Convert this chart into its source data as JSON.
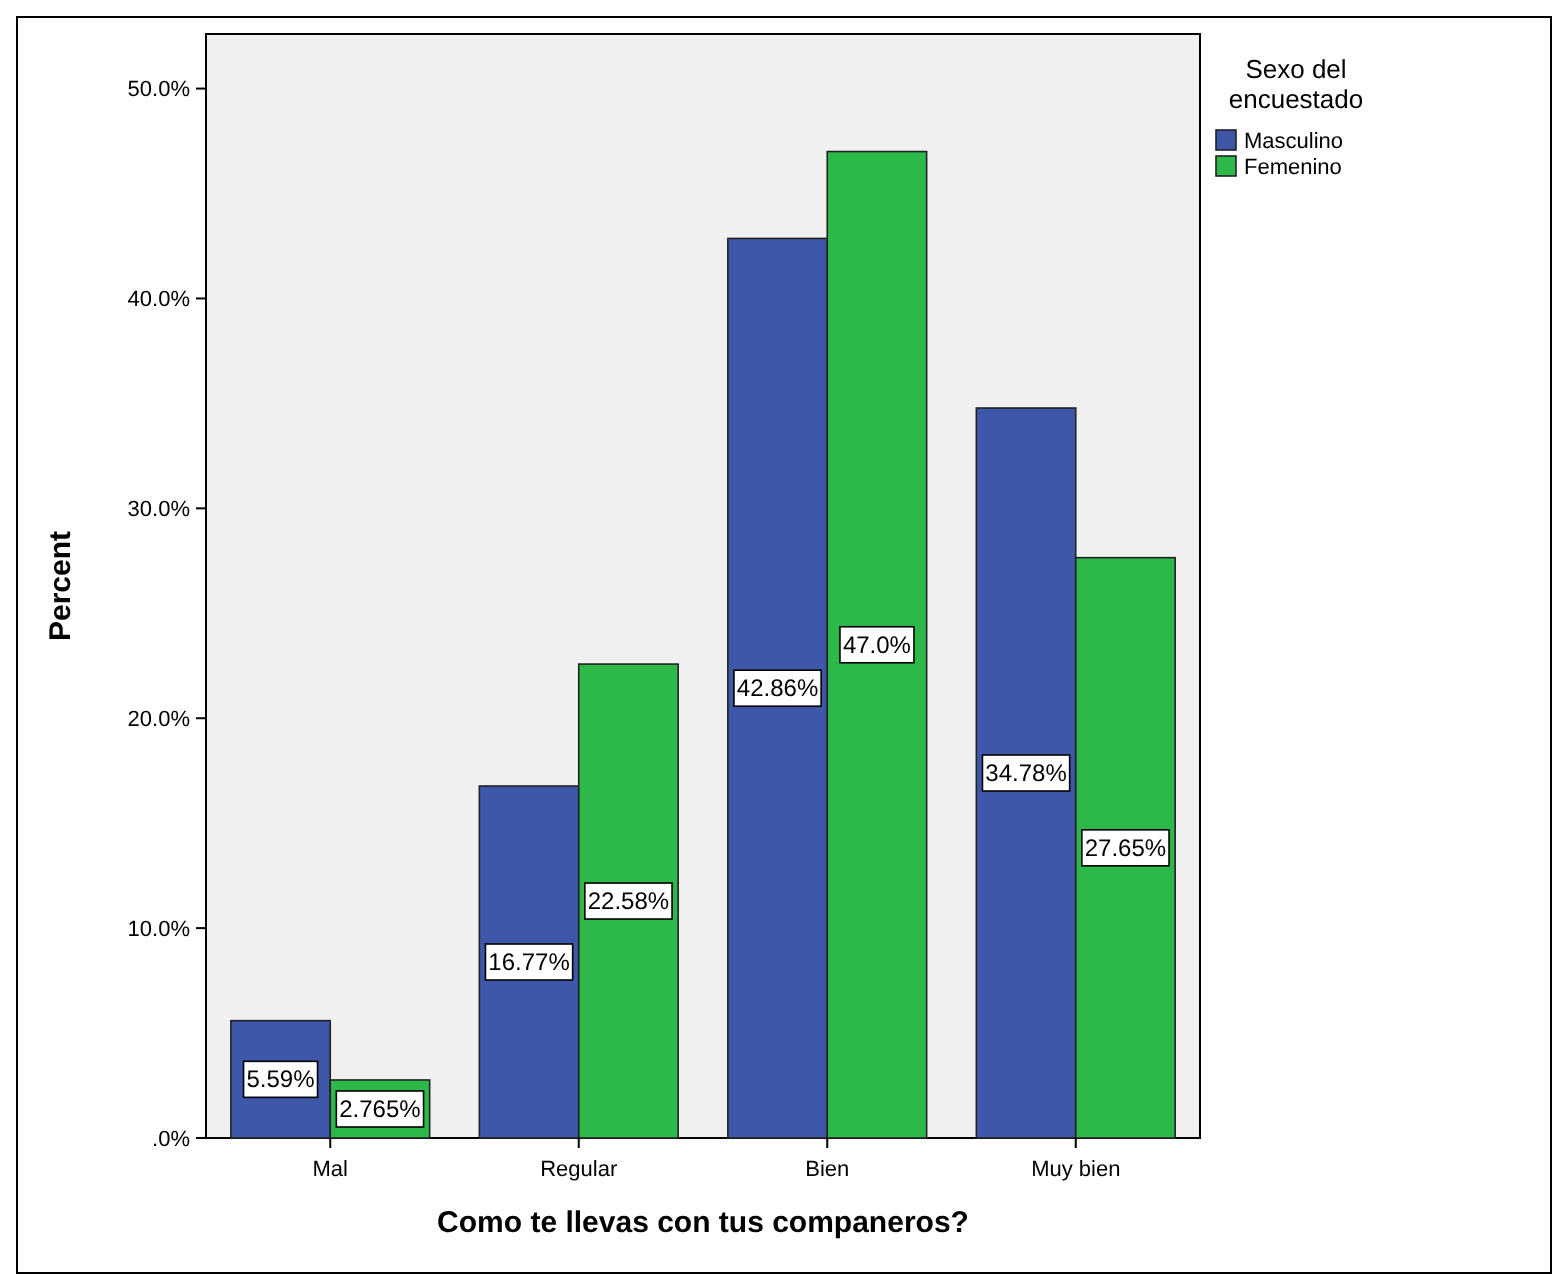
{
  "chart_data": {
    "type": "bar",
    "xlabel": "Como te llevas con tus companeros?",
    "ylabel": "Percent",
    "legend_title": "Sexo del encuestado",
    "legend": "right",
    "grid": false,
    "categories": [
      "Mal",
      "Regular",
      "Bien",
      "Muy bien"
    ],
    "ylim": [
      0,
      52.6
    ],
    "yticks": [
      {
        "value": 0,
        "label": ".0%"
      },
      {
        "value": 10,
        "label": "10.0%"
      },
      {
        "value": 20,
        "label": "20.0%"
      },
      {
        "value": 30,
        "label": "30.0%"
      },
      {
        "value": 40,
        "label": "40.0%"
      },
      {
        "value": 50,
        "label": "50.0%"
      }
    ],
    "series": [
      {
        "name": "Masculino",
        "color": "#3f57a8",
        "values": [
          5.59,
          16.77,
          42.86,
          34.78
        ],
        "value_labels": [
          "5.59%",
          "16.77%",
          "42.86%",
          "34.78%"
        ]
      },
      {
        "name": "Femenino",
        "color": "#2db84a",
        "values": [
          2.765,
          22.58,
          47.0,
          27.65
        ],
        "value_labels": [
          "2.765%",
          "22.58%",
          "47.0%",
          "27.65%"
        ]
      }
    ]
  }
}
